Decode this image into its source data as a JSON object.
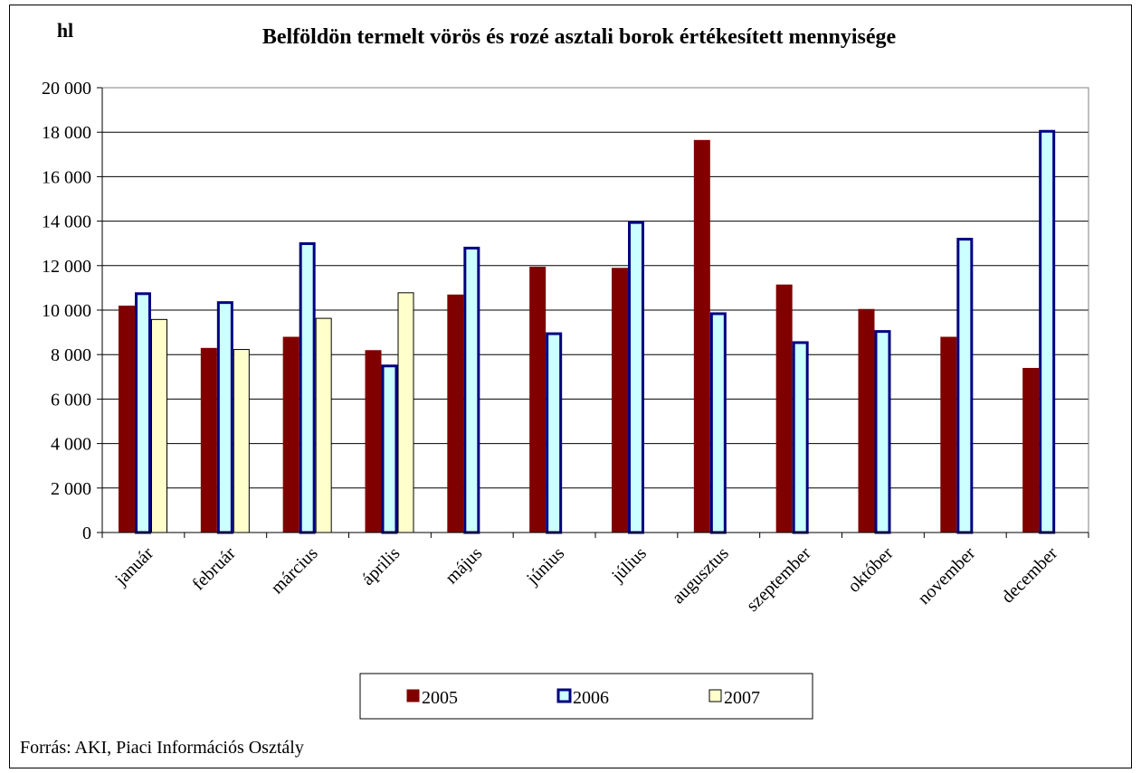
{
  "unit_label": "hl",
  "source": "Forrás: AKI, Piaci Információs Osztály",
  "chart_data": {
    "type": "bar",
    "title": "Belföldön termelt vörös és rozé asztali borok értékesített mennyisége",
    "ylabel": "hl",
    "ylim": [
      0,
      20000
    ],
    "yticks": [
      "0",
      "2 000",
      "4 000",
      "6 000",
      "8 000",
      "10 000",
      "12 000",
      "14 000",
      "16 000",
      "18 000",
      "20 000"
    ],
    "grid": true,
    "legend_position": "bottom",
    "categories": [
      "január",
      "február",
      "március",
      "április",
      "május",
      "június",
      "július",
      "augusztus",
      "szeptember",
      "október",
      "november",
      "december"
    ],
    "series": [
      {
        "name": "2005",
        "color": "#800000",
        "border": "#800000",
        "values": [
          10200,
          8300,
          8800,
          8200,
          10700,
          11950,
          11900,
          17650,
          11150,
          10050,
          8800,
          7400
        ]
      },
      {
        "name": "2006",
        "color": "#ccffff",
        "border": "#000080",
        "values": [
          10800,
          10400,
          13050,
          7550,
          12850,
          9000,
          14000,
          9900,
          8600,
          9100,
          13250,
          18100
        ]
      },
      {
        "name": "2007",
        "color": "#ffffcc",
        "border": "#000000",
        "values": [
          9600,
          8250,
          9650,
          10800,
          null,
          null,
          null,
          null,
          null,
          null,
          null,
          null
        ]
      }
    ]
  }
}
